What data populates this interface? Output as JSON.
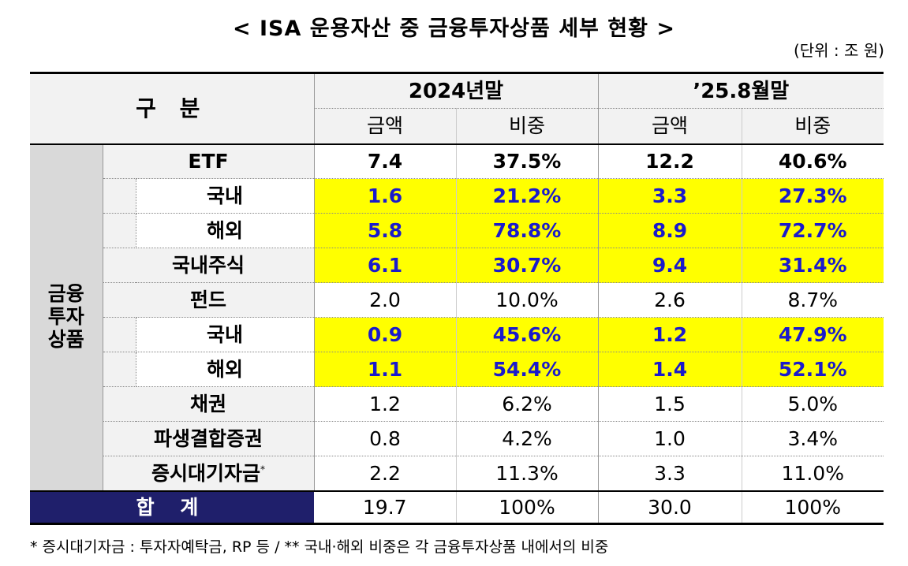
{
  "title": "< ISA 운용자산 중 금융투자상품 세부 현황 >",
  "unit": "(단위 : 조 원)",
  "header": {
    "category": "구 분",
    "period1": "2024년말",
    "period2": "’25.8월말",
    "amount": "금액",
    "share": "비중"
  },
  "side_label": [
    "금융",
    "투자",
    "상품"
  ],
  "rows": [
    {
      "label": "ETF",
      "a1": "7.4",
      "s1": "37.5%",
      "a2": "12.2",
      "s2": "40.6%"
    },
    {
      "label": "국내",
      "a1": "1.6",
      "s1": "21.2%",
      "a2": "3.3",
      "s2": "27.3%"
    },
    {
      "label": "해외",
      "a1": "5.8",
      "s1": "78.8%",
      "a2": "8.9",
      "s2": "72.7%"
    },
    {
      "label": "국내주식",
      "a1": "6.1",
      "s1": "30.7%",
      "a2": "9.4",
      "s2": "31.4%"
    },
    {
      "label": "펀드",
      "a1": "2.0",
      "s1": "10.0%",
      "a2": "2.6",
      "s2": "8.7%"
    },
    {
      "label": "국내",
      "a1": "0.9",
      "s1": "45.6%",
      "a2": "1.2",
      "s2": "47.9%"
    },
    {
      "label": "해외",
      "a1": "1.1",
      "s1": "54.4%",
      "a2": "1.4",
      "s2": "52.1%"
    },
    {
      "label": "채권",
      "a1": "1.2",
      "s1": "6.2%",
      "a2": "1.5",
      "s2": "5.0%"
    },
    {
      "label": "파생결합증권",
      "a1": "0.8",
      "s1": "4.2%",
      "a2": "1.0",
      "s2": "3.4%"
    },
    {
      "label": "증시대기자금",
      "sup": "*",
      "a1": "2.2",
      "s1": "11.3%",
      "a2": "3.3",
      "s2": "11.0%"
    }
  ],
  "total": {
    "label": "합 계",
    "a1": "19.7",
    "s1": "100%",
    "a2": "30.0",
    "s2": "100%"
  },
  "footnote": "* 증시대기자금 : 투자자예탁금, RP 등   /   ** 국내·해외 비중은 각 금융투자상품 내에서의 비중",
  "colors": {
    "highlight": "#ffff00",
    "highlight_text": "#1a1acc",
    "total_bg": "#1f1f6b",
    "header_bg": "#f2f2f2",
    "side_bg": "#d9d9d9"
  }
}
